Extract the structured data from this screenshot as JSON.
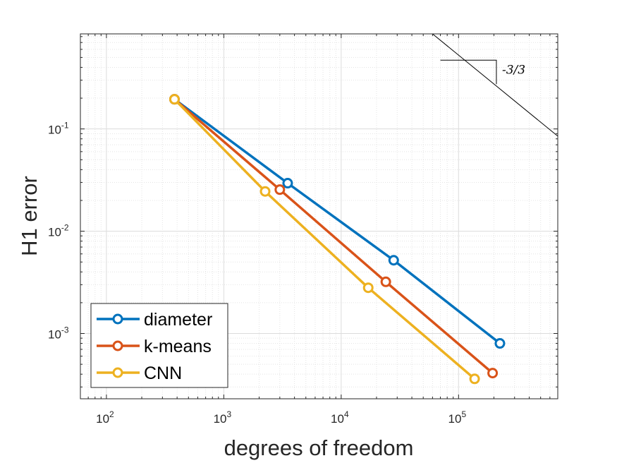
{
  "chart_data": {
    "type": "line",
    "scale": {
      "x": "log",
      "y": "log"
    },
    "xlabel": "degrees of freedom",
    "ylabel": "H1 error",
    "xlim": [
      60,
      700000
    ],
    "ylim": [
      0.00023,
      0.85
    ],
    "grid": true,
    "minor_grid": true,
    "x_ticks": [
      {
        "value": 100,
        "base": "10",
        "exp": "2"
      },
      {
        "value": 1000,
        "base": "10",
        "exp": "3"
      },
      {
        "value": 10000,
        "base": "10",
        "exp": "4"
      },
      {
        "value": 100000,
        "base": "10",
        "exp": "5"
      }
    ],
    "y_ticks": [
      {
        "value": 0.001,
        "base": "10",
        "exp": "-3"
      },
      {
        "value": 0.01,
        "base": "10",
        "exp": "-2"
      },
      {
        "value": 0.1,
        "base": "10",
        "exp": "-1"
      }
    ],
    "series": [
      {
        "name": "diameter",
        "color": "#0072BD",
        "x": [
          380,
          3500,
          28000,
          225000
        ],
        "y": [
          0.195,
          0.0295,
          0.0052,
          0.0008
        ]
      },
      {
        "name": "k-means",
        "color": "#D95319",
        "x": [
          380,
          3000,
          24000,
          195000
        ],
        "y": [
          0.195,
          0.0255,
          0.0032,
          0.00041
        ]
      },
      {
        "name": "CNN",
        "color": "#EDB120",
        "x": [
          380,
          2250,
          17000,
          137000
        ],
        "y": [
          0.195,
          0.0245,
          0.0028,
          0.00036
        ]
      }
    ],
    "reference_line": {
      "label": "-3/3",
      "slope": -1,
      "points": [
        [
          60000,
          0.85
        ],
        [
          700000,
          0.085
        ]
      ],
      "triangle": {
        "x0": 70000,
        "x1": 210000,
        "y_top": 0.47
      }
    },
    "legend": {
      "position": "bottom-left"
    }
  }
}
